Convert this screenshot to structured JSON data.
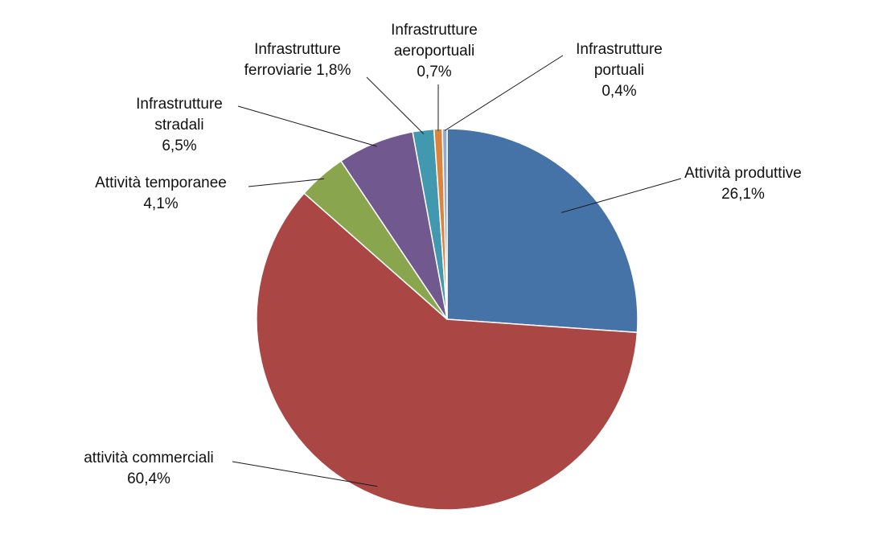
{
  "chart_data": {
    "type": "pie",
    "title": "",
    "slices": [
      {
        "label_lines": [
          "Attività produttive"
        ],
        "value": 26.1,
        "value_text": "26,1%",
        "color": "#4572a7"
      },
      {
        "label_lines": [
          "attività commerciali"
        ],
        "value": 60.4,
        "value_text": "60,4%",
        "color": "#aa4643"
      },
      {
        "label_lines": [
          "Attività temporanee"
        ],
        "value": 4.1,
        "value_text": "4,1%",
        "color": "#89a54e"
      },
      {
        "label_lines": [
          "Infrastrutture",
          "stradali"
        ],
        "value": 6.5,
        "value_text": "6,5%",
        "color": "#71588f"
      },
      {
        "label_lines": [
          "Infrastrutture",
          "ferroviarie"
        ],
        "value": 1.8,
        "value_text": "1,8%",
        "color": "#4198af"
      },
      {
        "label_lines": [
          "Infrastrutture",
          "aeroportuali"
        ],
        "value": 0.7,
        "value_text": "0,7%",
        "color": "#db843d"
      },
      {
        "label_lines": [
          "Infrastrutture",
          "portuali"
        ],
        "value": 0.4,
        "value_text": "0,4%",
        "color": "#93a9cf"
      }
    ]
  }
}
